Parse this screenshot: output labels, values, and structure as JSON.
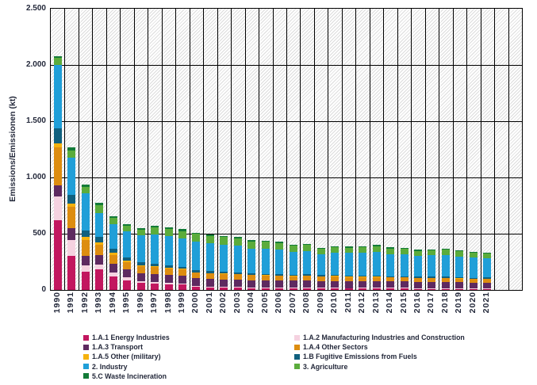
{
  "chart_data": {
    "type": "bar",
    "stacked": true,
    "title": "",
    "xlabel": "",
    "ylabel": "Emissions/Emissionen (kt)",
    "ylim": [
      0,
      2500
    ],
    "grid": "horizontal-and-vertical-black-lines, hatched plot background",
    "legend_position": "bottom-two-columns",
    "yticks": [
      {
        "value": 0,
        "label": "0"
      },
      {
        "value": 500,
        "label": "500"
      },
      {
        "value": 1000,
        "label": "1.000"
      },
      {
        "value": 1500,
        "label": "1.500"
      },
      {
        "value": 2000,
        "label": "2.000"
      },
      {
        "value": 2500,
        "label": "2.500"
      }
    ],
    "categories": [
      "1990",
      "1991",
      "1992",
      "1993",
      "1994",
      "1995",
      "1996",
      "1997",
      "1998",
      "1999",
      "2000",
      "2001",
      "2002",
      "2003",
      "2004",
      "2005",
      "2006",
      "2007",
      "2008",
      "2009",
      "2010",
      "2011",
      "2012",
      "2013",
      "2014",
      "2015",
      "2016",
      "2017",
      "2018",
      "2019",
      "2020",
      "2021"
    ],
    "series": [
      {
        "name": "1.A.1 Energy Industries",
        "color": "#C2175F",
        "values": [
          620,
          300,
          164,
          180,
          120,
          85,
          60,
          55,
          50,
          46,
          25,
          22,
          20,
          18,
          16,
          15,
          14,
          13,
          13,
          12,
          12,
          11,
          11,
          12,
          11,
          11,
          10,
          10,
          10,
          9,
          8,
          8
        ]
      },
      {
        "name": "1.A.2 Manufacturing Industries and Construction",
        "color": "#F5D2E0",
        "values": [
          210,
          146,
          52,
          45,
          35,
          25,
          18,
          15,
          13,
          11,
          9,
          8,
          8,
          8,
          7,
          7,
          7,
          7,
          7,
          6,
          7,
          6,
          7,
          7,
          7,
          7,
          6,
          6,
          7,
          6,
          6,
          6
        ]
      },
      {
        "name": "1.A.3 Transport",
        "color": "#5E2A60",
        "values": [
          100,
          101,
          89,
          83,
          78,
          74,
          72,
          72,
          71,
          70,
          70,
          69,
          67,
          67,
          65,
          64,
          63,
          62,
          63,
          60,
          61,
          59,
          59,
          59,
          57,
          57,
          55,
          55,
          54,
          53,
          50,
          52
        ]
      },
      {
        "name": "1.A.4 Other Sectors",
        "color": "#DD8D10",
        "values": [
          338,
          195,
          136,
          93,
          80,
          65,
          62,
          60,
          57,
          54,
          48,
          46,
          45,
          45,
          43,
          42,
          41,
          40,
          42,
          40,
          41,
          38,
          38,
          38,
          36,
          36,
          35,
          35,
          34,
          33,
          32,
          33
        ]
      },
      {
        "name": "1.A.5 Other (military)",
        "color": "#F5B20E",
        "values": [
          33,
          28,
          29,
          24,
          16,
          12,
          8,
          7,
          6,
          6,
          5,
          5,
          5,
          4,
          4,
          4,
          4,
          4,
          4,
          3,
          3,
          3,
          3,
          3,
          3,
          3,
          3,
          3,
          3,
          3,
          3,
          3
        ]
      },
      {
        "name": "1.B Fugitive Emissions from Fuels",
        "color": "#10607E",
        "values": [
          136,
          75,
          58,
          47,
          35,
          28,
          24,
          22,
          20,
          18,
          20,
          17,
          15,
          14,
          13,
          12,
          12,
          11,
          11,
          10,
          10,
          10,
          10,
          10,
          9,
          9,
          9,
          9,
          9,
          8,
          8,
          8
        ]
      },
      {
        "name": "2. Industry",
        "color": "#209FD8",
        "values": [
          563,
          330,
          330,
          215,
          220,
          230,
          240,
          260,
          262,
          256,
          252,
          247,
          243,
          238,
          221,
          224,
          219,
          204,
          207,
          186,
          198,
          203,
          202,
          208,
          197,
          194,
          185,
          189,
          194,
          186,
          180,
          172
        ]
      },
      {
        "name": "3. Agriculture",
        "color": "#5BAC3C",
        "values": [
          62,
          66,
          58,
          68,
          56,
          52,
          52,
          64,
          64,
          64,
          68,
          68,
          66,
          65,
          62,
          61,
          57,
          54,
          53,
          48,
          48,
          47,
          50,
          53,
          50,
          49,
          46,
          46,
          46,
          45,
          42,
          41
        ]
      },
      {
        "name": "5.C Waste Incineration",
        "color": "#137B38",
        "values": [
          18,
          26,
          23,
          20,
          15,
          14,
          14,
          15,
          15,
          15,
          13,
          13,
          13,
          13,
          11,
          11,
          11,
          10,
          10,
          10,
          10,
          10,
          10,
          10,
          10,
          10,
          9,
          9,
          9,
          9,
          9,
          9
        ]
      }
    ],
    "legend_columns": [
      [
        0,
        2,
        4,
        6,
        8
      ],
      [
        1,
        3,
        5,
        7
      ]
    ]
  }
}
